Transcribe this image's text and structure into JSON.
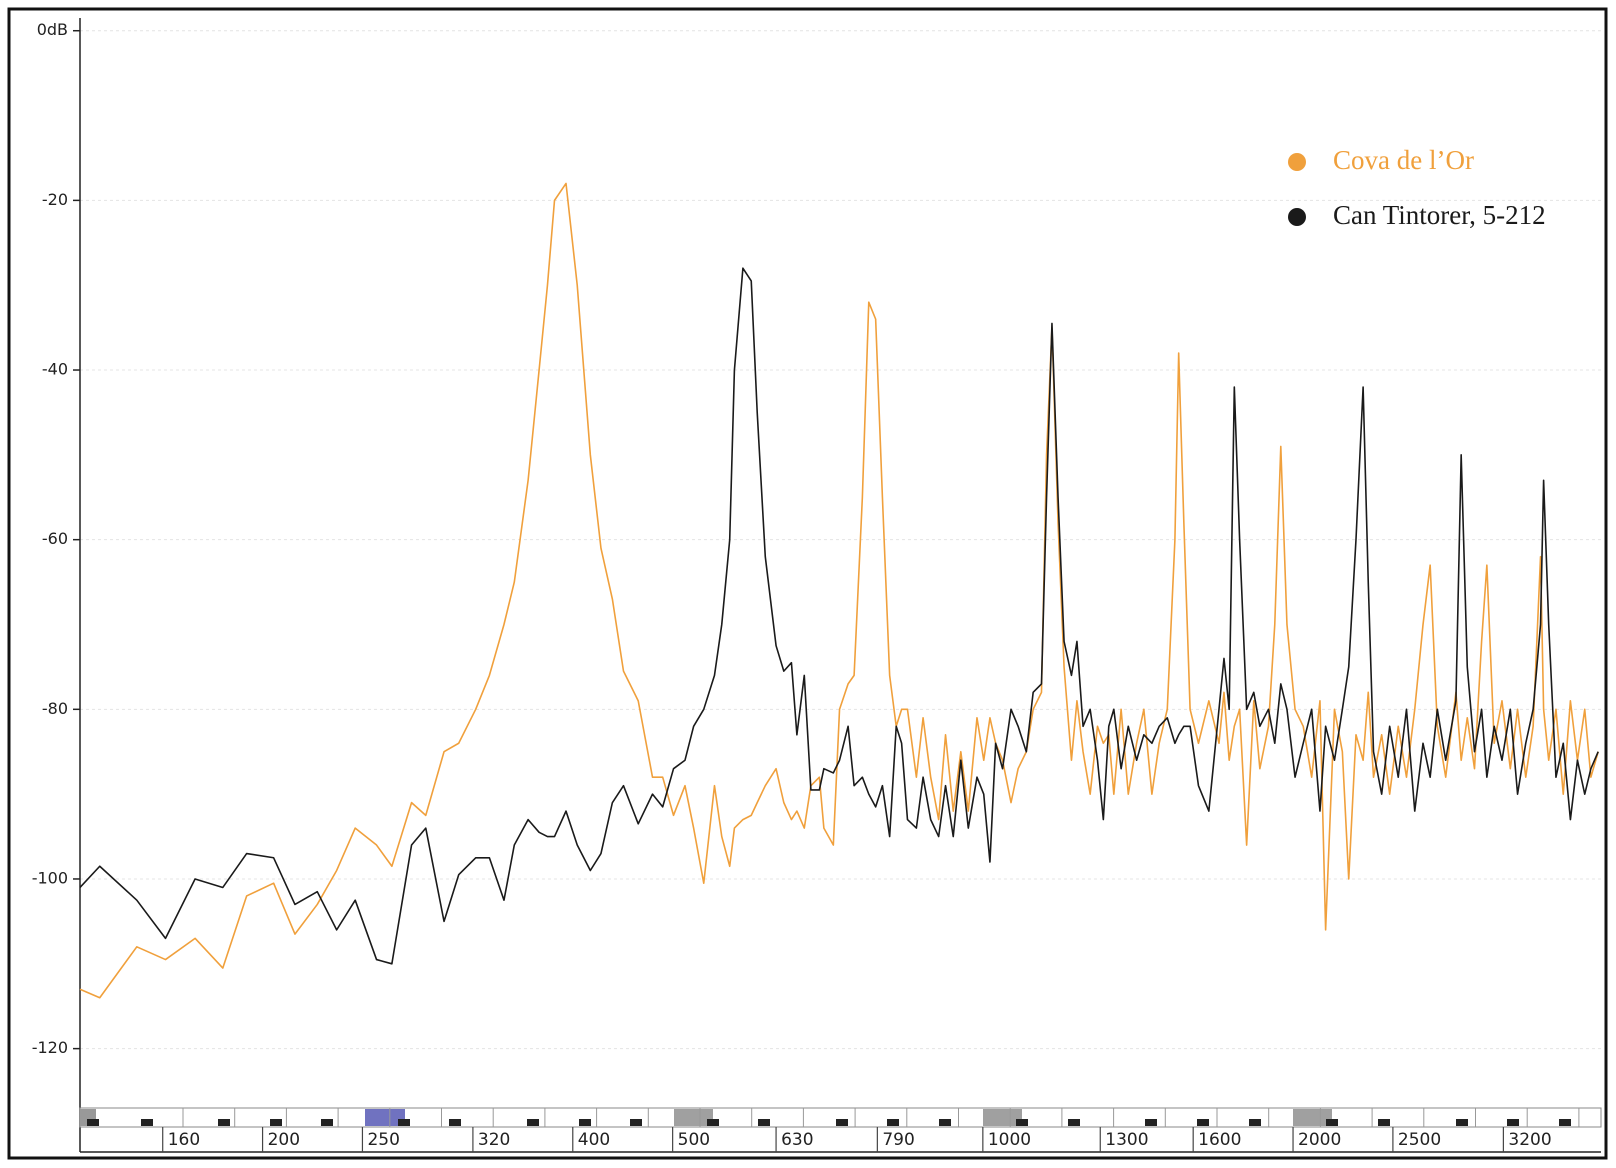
{
  "chart_data": {
    "type": "line",
    "x": [
      133,
      139,
      151,
      161,
      172,
      183,
      193,
      205,
      215,
      226,
      236,
      246,
      258,
      267,
      279,
      288,
      300,
      310,
      322,
      332,
      343,
      351,
      362,
      371,
      378,
      384,
      394,
      404,
      416,
      426,
      437,
      448,
      463,
      478,
      489,
      501,
      514,
      524,
      536,
      549,
      558,
      568,
      574,
      585,
      596,
      604,
      615,
      630,
      641,
      652,
      660,
      671,
      681,
      694,
      701,
      716,
      726,
      740,
      750,
      764,
      775,
      787,
      799,
      812,
      824,
      834,
      845,
      862,
      875,
      890,
      906,
      920,
      936,
      952,
      968,
      987,
      1002,
      1016,
      1029,
      1045,
      1065,
      1082,
      1102,
      1119,
      1140,
      1153,
      1167,
      1183,
      1199,
      1219,
      1234,
      1251,
      1271,
      1292,
      1309,
      1325,
      1340,
      1362,
      1384,
      1410,
      1433,
      1459,
      1483,
      1510,
      1536,
      1549,
      1567,
      1589,
      1619,
      1657,
      1695,
      1714,
      1734,
      1754,
      1775,
      1803,
      1832,
      1857,
      1893,
      1920,
      1946,
      1973,
      2009,
      2046,
      2085,
      2124,
      2151,
      2194,
      2233,
      2265,
      2302,
      2339,
      2366,
      2394,
      2438,
      2482,
      2530,
      2577,
      2625,
      2674,
      2717,
      2761,
      2813,
      2878,
      2912,
      2952,
      3000,
      3048,
      3084,
      3135,
      3190,
      3250,
      3303,
      3364,
      3420,
      3477,
      3501,
      3541,
      3599,
      3658,
      3717,
      3776,
      3838,
      3891,
      3955
    ],
    "series": [
      {
        "name": "Cova de l’Or",
        "color": "#f0a03c",
        "values": [
          -113,
          -114,
          -108,
          -109.5,
          -107,
          -110.5,
          -102,
          -100.5,
          -106.5,
          -103,
          -99,
          -94,
          -96,
          -98.5,
          -91,
          -92.5,
          -85,
          -84,
          -80,
          -76,
          -70,
          -65,
          -53,
          -40,
          -30,
          -20,
          -18,
          -30,
          -50,
          -61,
          -67,
          -75.5,
          -79,
          -88,
          -88,
          -92.5,
          -89,
          -94,
          -100.5,
          -89,
          -95,
          -98.5,
          -94,
          -93,
          -92.5,
          -91,
          -89,
          -87,
          -91,
          -93,
          -92,
          -94,
          -89,
          -88,
          -94,
          -96,
          -80,
          -77,
          -76,
          -55,
          -32,
          -34,
          -55,
          -76,
          -82,
          -80,
          -80,
          -88,
          -81,
          -88,
          -93,
          -83,
          -92,
          -85,
          -92,
          -81,
          -86,
          -81,
          -84,
          -86,
          -91,
          -87,
          -85,
          -80,
          -78,
          -50,
          -35,
          -58,
          -75,
          -86,
          -79,
          -85,
          -90,
          -82,
          -84,
          -83,
          -90,
          -80,
          -90,
          -84,
          -80,
          -90,
          -84,
          -80,
          -60,
          -38,
          -58,
          -80,
          -84,
          -79,
          -84,
          -78,
          -86,
          -82,
          -80,
          -96,
          -79,
          -87,
          -82,
          -70,
          -49,
          -70,
          -80,
          -82,
          -88,
          -79,
          -106,
          -80,
          -85,
          -100,
          -83,
          -86,
          -78,
          -88,
          -83,
          -90,
          -82,
          -88,
          -80,
          -70,
          -63,
          -82,
          -88,
          -78,
          -86,
          -81,
          -87,
          -72,
          -63,
          -84,
          -79,
          -87,
          -80,
          -88,
          -82,
          -62,
          -80,
          -86,
          -80,
          -90,
          -79,
          -86,
          -80,
          -88,
          -85
        ]
      },
      {
        "name": "Can Tintorer, 5-212",
        "color": "#1a1a1a",
        "values": [
          -101,
          -98.5,
          -102.5,
          -107,
          -100,
          -101,
          -97,
          -97.5,
          -103,
          -101.5,
          -106,
          -102.5,
          -109.5,
          -110,
          -96,
          -94,
          -105,
          -99.5,
          -97.5,
          -97.5,
          -102.5,
          -96,
          -93,
          -94.5,
          -95,
          -95,
          -92,
          -96,
          -99,
          -97,
          -91,
          -89,
          -93.5,
          -90,
          -91.5,
          -87,
          -86,
          -82,
          -80,
          -76,
          -70,
          -60,
          -40,
          -28,
          -29.5,
          -45,
          -62,
          -72.5,
          -75.5,
          -74.5,
          -83,
          -76,
          -89.5,
          -89.5,
          -87,
          -87.5,
          -86,
          -82,
          -89,
          -88,
          -90,
          -91.5,
          -89,
          -95,
          -82,
          -84,
          -93,
          -94,
          -88,
          -93,
          -95,
          -89,
          -95,
          -86,
          -94,
          -88,
          -90,
          -98,
          -84,
          -87,
          -80,
          -82,
          -85,
          -78,
          -77,
          -55,
          -34.5,
          -55,
          -72,
          -76,
          -72,
          -82,
          -80,
          -86,
          -93,
          -82,
          -80,
          -87,
          -82,
          -86,
          -83,
          -84,
          -82,
          -81,
          -84,
          -83,
          -82,
          -82,
          -89,
          -92,
          -80,
          -74,
          -80,
          -42,
          -60,
          -80,
          -78,
          -82,
          -80,
          -84,
          -77,
          -80,
          -88,
          -84,
          -80,
          -92,
          -82,
          -86,
          -80,
          -75,
          -60,
          -42,
          -65,
          -85,
          -90,
          -82,
          -88,
          -80,
          -92,
          -84,
          -88,
          -80,
          -86,
          -79,
          -50,
          -75,
          -85,
          -80,
          -88,
          -82,
          -86,
          -80,
          -90,
          -84,
          -80,
          -70,
          -53,
          -70,
          -88,
          -84,
          -93,
          -86,
          -90,
          -87,
          -85
        ]
      }
    ],
    "xscale": "log",
    "xlim": [
      133,
      3980
    ],
    "xticks": [
      160,
      200,
      250,
      320,
      400,
      500,
      630,
      790,
      1000,
      1300,
      1600,
      2000,
      2500,
      3200
    ],
    "ylim": [
      -127,
      1.5
    ],
    "yticks": [
      {
        "value": 0,
        "label": "0dB"
      },
      -20,
      -40,
      -60,
      -80,
      -100,
      -120
    ],
    "grid": true,
    "legend": "top-right"
  }
}
